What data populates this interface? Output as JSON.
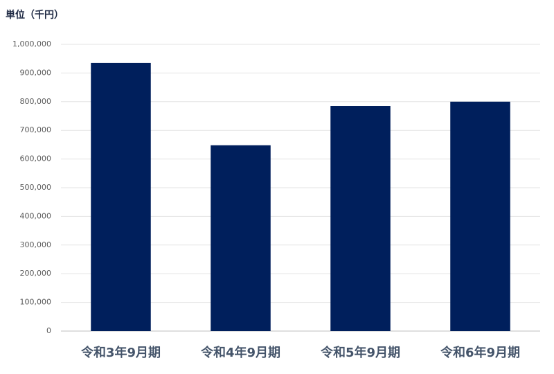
{
  "chart_data": {
    "type": "bar",
    "title": "単位（千円）",
    "categories": [
      "令和3年9月期",
      "令和4年9月期",
      "令和5年9月期",
      "令和6年9月期"
    ],
    "values": [
      935000,
      648000,
      785000,
      800000
    ],
    "color": "#001f5c",
    "ylim": [
      0,
      1000000
    ],
    "yticks": [
      0,
      {
        "value": 100000,
        "label": "100,000"
      },
      {
        "value": 200000,
        "label": "200,000"
      },
      {
        "value": 300000,
        "label": "300,000"
      },
      {
        "value": 400000,
        "label": "400,000"
      },
      {
        "value": 500000,
        "label": "500,000"
      },
      {
        "value": 600000,
        "label": "600,000"
      },
      {
        "value": 700000,
        "label": "700,000"
      },
      {
        "value": 800000,
        "label": "800,000"
      },
      {
        "value": 900000,
        "label": "900,000"
      },
      {
        "value": 1000000,
        "label": "1,000,000"
      }
    ],
    "grid": true
  }
}
